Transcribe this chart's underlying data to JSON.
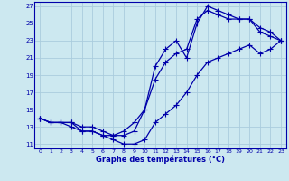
{
  "xlabel": "Graphe des températures (°C)",
  "bg_color": "#cce8f0",
  "grid_color": "#aaccdd",
  "line_color": "#0000aa",
  "markersize": 2.0,
  "linewidth": 0.9,
  "ylim": [
    10.5,
    27.5
  ],
  "xlim": [
    -0.5,
    23.5
  ],
  "yticks": [
    11,
    13,
    15,
    17,
    19,
    21,
    23,
    25,
    27
  ],
  "xticks": [
    0,
    1,
    2,
    3,
    4,
    5,
    6,
    7,
    8,
    9,
    10,
    11,
    12,
    13,
    14,
    15,
    16,
    17,
    18,
    19,
    20,
    21,
    22,
    23
  ],
  "series1_x": [
    0,
    1,
    2,
    3,
    4,
    5,
    6,
    7,
    8,
    9,
    10,
    11,
    12,
    13,
    14,
    15,
    16,
    17,
    18,
    19,
    20,
    21,
    22,
    23
  ],
  "series1_y": [
    14.0,
    13.5,
    13.5,
    13.5,
    13.0,
    13.0,
    12.5,
    12.0,
    12.0,
    12.5,
    15.0,
    18.5,
    20.5,
    21.5,
    22.0,
    25.5,
    26.5,
    26.0,
    25.5,
    25.5,
    25.5,
    24.5,
    24.0,
    23.0
  ],
  "series2_x": [
    0,
    1,
    2,
    3,
    4,
    5,
    6,
    7,
    8,
    9,
    10,
    11,
    12,
    13,
    14,
    15,
    16,
    17,
    18,
    19,
    20,
    21,
    22,
    23
  ],
  "series2_y": [
    14.0,
    13.5,
    13.5,
    13.5,
    12.5,
    12.5,
    12.0,
    12.0,
    12.5,
    13.5,
    15.0,
    20.0,
    22.0,
    23.0,
    21.0,
    25.0,
    27.0,
    26.5,
    26.0,
    25.5,
    25.5,
    24.0,
    23.5,
    23.0
  ],
  "series3_x": [
    0,
    1,
    2,
    3,
    4,
    5,
    6,
    7,
    8,
    9,
    10,
    11,
    12,
    13,
    14,
    15,
    16,
    17,
    18,
    19,
    20,
    21,
    22,
    23
  ],
  "series3_y": [
    14.0,
    13.5,
    13.5,
    13.0,
    12.5,
    12.5,
    12.0,
    11.5,
    11.0,
    11.0,
    11.5,
    13.5,
    14.5,
    15.5,
    17.0,
    19.0,
    20.5,
    21.0,
    21.5,
    22.0,
    22.5,
    21.5,
    22.0,
    23.0
  ]
}
